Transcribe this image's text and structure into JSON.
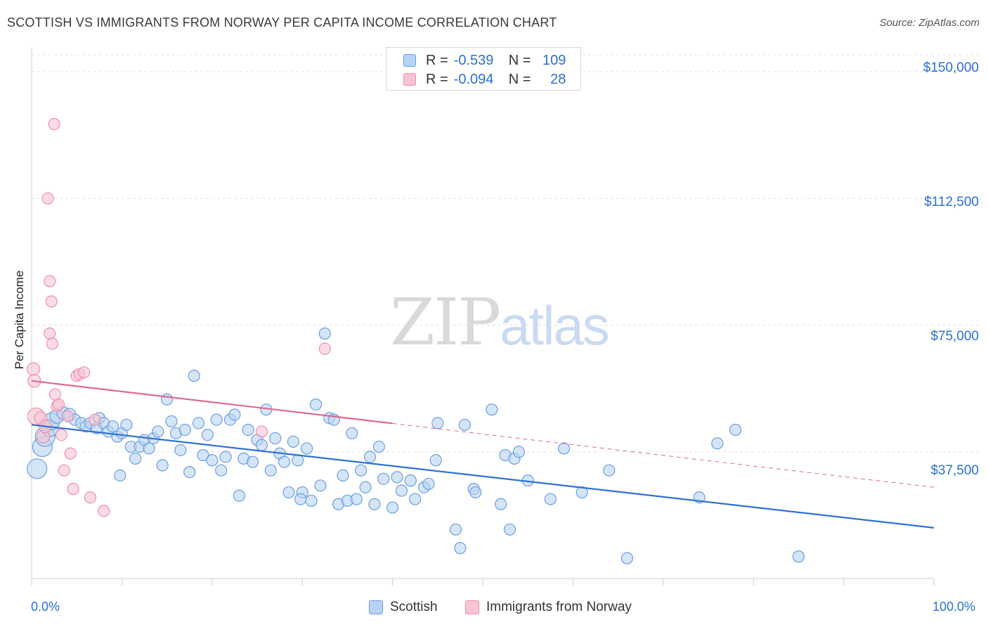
{
  "title": "SCOTTISH VS IMMIGRANTS FROM NORWAY PER CAPITA INCOME CORRELATION CHART",
  "source": "Source: ZipAtlas.com",
  "watermark": {
    "part1": "ZIP",
    "part2": "atlas"
  },
  "legend_top": [
    {
      "r_label": "R =",
      "r_value": "-0.539",
      "n_label": "N =",
      "n_value": "109"
    },
    {
      "r_label": "R =",
      "r_value": "-0.094",
      "n_label": "N =",
      "n_value": "28"
    }
  ],
  "colors": {
    "scottish_fill": "#b9d3f4",
    "scottish_stroke": "#6a9fe0",
    "scottish_line": "#2f72d4",
    "norway_fill": "#f9c4d3",
    "norway_stroke": "#ee8fab",
    "norway_line": "#e0688f",
    "axis_label": "#2b6fd6",
    "grid": "#e2e2e2"
  },
  "chart_data": {
    "type": "scatter",
    "title": "SCOTTISH VS IMMIGRANTS FROM NORWAY PER CAPITA INCOME CORRELATION CHART",
    "ylabel": "Per Capita Income",
    "xlim": [
      0,
      100
    ],
    "ylim": [
      0,
      155000
    ],
    "x_tick_labels": [
      "0.0%",
      "100.0%"
    ],
    "y_ticks": [
      37500,
      75000,
      112500,
      150000
    ],
    "y_tick_labels": [
      "$37,500",
      "$75,000",
      "$112,500",
      "$150,000"
    ],
    "grid": "horizontal dashed",
    "legend_position": "top-center",
    "series": [
      {
        "name": "Scottish",
        "r": -0.539,
        "n": 109,
        "trend": {
          "x0": 0,
          "y0": 45500,
          "x1": 100,
          "y1": 15000,
          "solid_to": 100
        },
        "points": [
          [
            0.6,
            32500,
            14
          ],
          [
            1.2,
            39000,
            14
          ],
          [
            1.5,
            42000,
            14
          ],
          [
            2.0,
            44500,
            12
          ],
          [
            2.2,
            46500,
            12
          ],
          [
            2.8,
            48000,
            10
          ],
          [
            3.5,
            49000,
            9
          ],
          [
            4.2,
            48500,
            9
          ],
          [
            4.8,
            47000,
            8
          ],
          [
            5.5,
            46000,
            8
          ],
          [
            6.0,
            45000,
            8
          ],
          [
            6.5,
            46000,
            8
          ],
          [
            7.2,
            44500,
            8
          ],
          [
            7.5,
            47500,
            8
          ],
          [
            8.0,
            46000,
            8
          ],
          [
            8.5,
            43500,
            8
          ],
          [
            9.0,
            45000,
            8
          ],
          [
            9.5,
            42000,
            8
          ],
          [
            10.0,
            43000,
            8
          ],
          [
            10.5,
            45500,
            8
          ],
          [
            11.0,
            39000,
            8
          ],
          [
            11.5,
            35500,
            8
          ],
          [
            12.0,
            39000,
            8
          ],
          [
            12.5,
            41000,
            8
          ],
          [
            13.0,
            38500,
            8
          ],
          [
            13.5,
            41500,
            8
          ],
          [
            14.0,
            43500,
            8
          ],
          [
            14.5,
            33500,
            8
          ],
          [
            15.0,
            53000,
            8
          ],
          [
            15.5,
            46500,
            8
          ],
          [
            16.0,
            43000,
            8
          ],
          [
            16.5,
            38000,
            8
          ],
          [
            17.0,
            44000,
            8
          ],
          [
            17.5,
            31500,
            8
          ],
          [
            18.0,
            60000,
            8
          ],
          [
            18.5,
            46000,
            8
          ],
          [
            19.0,
            36500,
            8
          ],
          [
            19.5,
            42500,
            8
          ],
          [
            20.0,
            35000,
            8
          ],
          [
            20.5,
            47000,
            8
          ],
          [
            21.0,
            32000,
            8
          ],
          [
            21.5,
            36000,
            8
          ],
          [
            22.0,
            47000,
            8
          ],
          [
            22.5,
            48500,
            8
          ],
          [
            23.0,
            24500,
            8
          ],
          [
            23.5,
            35500,
            8
          ],
          [
            24.0,
            44000,
            8
          ],
          [
            24.5,
            34500,
            8
          ],
          [
            25.0,
            41000,
            8
          ],
          [
            25.5,
            39500,
            8
          ],
          [
            26.0,
            50000,
            8
          ],
          [
            26.5,
            32000,
            8
          ],
          [
            27.0,
            41500,
            8
          ],
          [
            27.5,
            37000,
            8
          ],
          [
            28.0,
            34500,
            8
          ],
          [
            28.5,
            25500,
            8
          ],
          [
            29.0,
            40500,
            8
          ],
          [
            29.5,
            35000,
            8
          ],
          [
            30.0,
            25500,
            8
          ],
          [
            30.5,
            38500,
            8
          ],
          [
            31.0,
            23000,
            8
          ],
          [
            31.5,
            51500,
            8
          ],
          [
            32.0,
            27500,
            8
          ],
          [
            32.5,
            72500,
            8
          ],
          [
            33.0,
            47500,
            8
          ],
          [
            33.5,
            47000,
            8
          ],
          [
            34.0,
            22000,
            8
          ],
          [
            34.5,
            30500,
            8
          ],
          [
            35.0,
            23000,
            8
          ],
          [
            35.5,
            43000,
            8
          ],
          [
            36.0,
            23500,
            8
          ],
          [
            36.5,
            32000,
            8
          ],
          [
            37.0,
            27000,
            8
          ],
          [
            37.5,
            36000,
            8
          ],
          [
            38.0,
            22000,
            8
          ],
          [
            38.5,
            39000,
            8
          ],
          [
            39.0,
            29500,
            8
          ],
          [
            40.0,
            21000,
            8
          ],
          [
            40.5,
            30000,
            8
          ],
          [
            41.0,
            26000,
            8
          ],
          [
            42.0,
            29000,
            8
          ],
          [
            42.5,
            23500,
            8
          ],
          [
            43.5,
            27000,
            8
          ],
          [
            44.0,
            28000,
            8
          ],
          [
            45.0,
            46000,
            8
          ],
          [
            47.0,
            14500,
            8
          ],
          [
            47.5,
            9000,
            8
          ],
          [
            48.0,
            45500,
            8
          ],
          [
            49.0,
            26500,
            8
          ],
          [
            49.2,
            25500,
            8
          ],
          [
            51.0,
            50000,
            8
          ],
          [
            52.0,
            22000,
            8
          ],
          [
            52.5,
            36500,
            8
          ],
          [
            53.0,
            14500,
            8
          ],
          [
            53.5,
            35500,
            8
          ],
          [
            54.0,
            37500,
            8
          ],
          [
            55.0,
            29000,
            8
          ],
          [
            57.5,
            23500,
            8
          ],
          [
            59.0,
            38500,
            8
          ],
          [
            61.0,
            25500,
            8
          ],
          [
            64.0,
            32000,
            8
          ],
          [
            66.0,
            6000,
            8
          ],
          [
            74.0,
            24000,
            8
          ],
          [
            76.0,
            40000,
            8
          ],
          [
            78.0,
            44000,
            8
          ],
          [
            85.0,
            6500,
            8
          ],
          [
            29.8,
            23500,
            8
          ],
          [
            44.8,
            35000,
            8
          ],
          [
            9.8,
            30500,
            8
          ]
        ]
      },
      {
        "name": "Immigrants from Norway",
        "r": -0.094,
        "n": 28,
        "trend": {
          "x0": 0,
          "y0": 58500,
          "x1": 100,
          "y1": 27000,
          "solid_to": 40
        },
        "points": [
          [
            0.2,
            62000,
            9
          ],
          [
            0.3,
            58500,
            9
          ],
          [
            0.5,
            48000,
            12
          ],
          [
            1.0,
            47500,
            9
          ],
          [
            1.3,
            42000,
            9
          ],
          [
            1.5,
            45000,
            9
          ],
          [
            1.8,
            112500,
            8
          ],
          [
            2.0,
            88000,
            8
          ],
          [
            2.2,
            82000,
            8
          ],
          [
            2.0,
            72500,
            8
          ],
          [
            2.3,
            69500,
            8
          ],
          [
            2.6,
            54500,
            8
          ],
          [
            2.8,
            51000,
            8
          ],
          [
            3.0,
            51500,
            8
          ],
          [
            3.3,
            42500,
            8
          ],
          [
            3.6,
            32000,
            8
          ],
          [
            4.0,
            48000,
            8
          ],
          [
            4.3,
            37000,
            8
          ],
          [
            4.6,
            26500,
            8
          ],
          [
            5.0,
            60000,
            8
          ],
          [
            5.3,
            60500,
            8
          ],
          [
            5.8,
            61000,
            8
          ],
          [
            6.5,
            24000,
            8
          ],
          [
            7.0,
            47000,
            8
          ],
          [
            8.0,
            20000,
            8
          ],
          [
            25.5,
            43500,
            8
          ],
          [
            32.5,
            68000,
            8
          ],
          [
            2.5,
            134500,
            8
          ]
        ]
      }
    ]
  }
}
